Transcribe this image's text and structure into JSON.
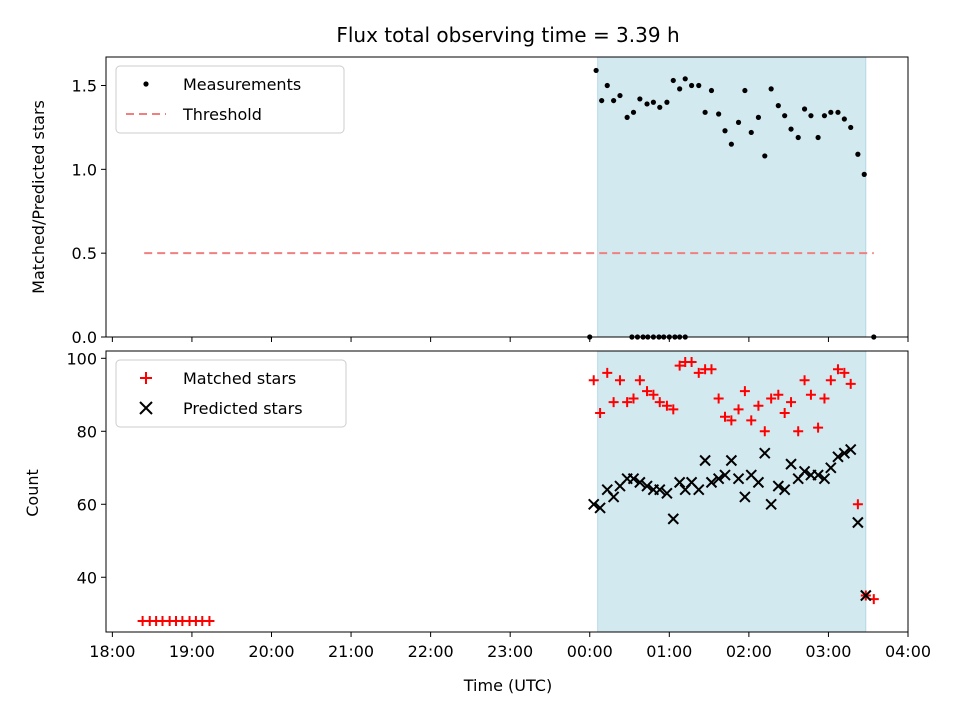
{
  "chart_data": [
    {
      "type": "scatter",
      "panel": "top",
      "title": "Flux total observing time = 3.39 h",
      "ylabel": "Matched/Predicted stars",
      "xlabel": "",
      "x_unit": "hours since 18:00 UTC",
      "xlim": [
        -0.08,
        10.0
      ],
      "ylim": [
        0.0,
        1.67
      ],
      "yticks": [
        0.0,
        0.5,
        1.0,
        1.5
      ],
      "ytick_labels": [
        "0.0",
        "0.5",
        "1.0",
        "1.5"
      ],
      "legend_position": "upper-left",
      "shaded_interval": {
        "x": [
          6.1,
          9.47
        ],
        "color": "#d3e9f0"
      },
      "series": [
        {
          "name": "Measurements",
          "marker": "dot",
          "color": "#000000",
          "points": [
            [
              6.0,
              0.0
            ],
            [
              6.53,
              0.0
            ],
            [
              6.6,
              0.0
            ],
            [
              6.67,
              0.0
            ],
            [
              6.73,
              0.0
            ],
            [
              6.8,
              0.0
            ],
            [
              6.87,
              0.0
            ],
            [
              6.93,
              0.0
            ],
            [
              7.0,
              0.0
            ],
            [
              7.07,
              0.0
            ],
            [
              7.13,
              0.0
            ],
            [
              7.2,
              0.0
            ],
            [
              6.08,
              1.59
            ],
            [
              6.15,
              1.41
            ],
            [
              6.22,
              1.5
            ],
            [
              6.3,
              1.41
            ],
            [
              6.38,
              1.44
            ],
            [
              6.47,
              1.31
            ],
            [
              6.55,
              1.34
            ],
            [
              6.63,
              1.42
            ],
            [
              6.72,
              1.39
            ],
            [
              6.8,
              1.4
            ],
            [
              6.88,
              1.37
            ],
            [
              6.97,
              1.4
            ],
            [
              7.05,
              1.53
            ],
            [
              7.13,
              1.48
            ],
            [
              7.2,
              1.54
            ],
            [
              7.28,
              1.5
            ],
            [
              7.37,
              1.5
            ],
            [
              7.45,
              1.34
            ],
            [
              7.53,
              1.47
            ],
            [
              7.62,
              1.33
            ],
            [
              7.7,
              1.23
            ],
            [
              7.78,
              1.15
            ],
            [
              7.87,
              1.28
            ],
            [
              7.95,
              1.47
            ],
            [
              8.03,
              1.22
            ],
            [
              8.12,
              1.31
            ],
            [
              8.2,
              1.08
            ],
            [
              8.28,
              1.48
            ],
            [
              8.37,
              1.38
            ],
            [
              8.45,
              1.32
            ],
            [
              8.53,
              1.24
            ],
            [
              8.62,
              1.19
            ],
            [
              8.7,
              1.36
            ],
            [
              8.78,
              1.32
            ],
            [
              8.87,
              1.19
            ],
            [
              8.95,
              1.32
            ],
            [
              9.03,
              1.34
            ],
            [
              9.12,
              1.34
            ],
            [
              9.2,
              1.3
            ],
            [
              9.28,
              1.25
            ],
            [
              9.37,
              1.09
            ],
            [
              9.45,
              0.97
            ],
            [
              9.57,
              0.0
            ]
          ]
        },
        {
          "name": "Threshold",
          "style": "dashed-line",
          "color": "#f08080",
          "points": [
            [
              0.4,
              0.5
            ],
            [
              9.57,
              0.5
            ]
          ]
        }
      ]
    },
    {
      "type": "scatter",
      "panel": "bottom",
      "xlabel": "Time (UTC)",
      "ylabel": "Count",
      "x_unit": "hours since 18:00 UTC",
      "xlim": [
        -0.08,
        10.0
      ],
      "ylim": [
        25,
        102
      ],
      "yticks": [
        40,
        60,
        80,
        100
      ],
      "ytick_labels": [
        "40",
        "60",
        "80",
        "100"
      ],
      "xticks": [
        0,
        1,
        2,
        3,
        4,
        5,
        6,
        7,
        8,
        9,
        10
      ],
      "xtick_labels": [
        "18:00",
        "19:00",
        "20:00",
        "21:00",
        "22:00",
        "23:00",
        "00:00",
        "01:00",
        "02:00",
        "03:00",
        "04:00"
      ],
      "legend_position": "upper-left",
      "shaded_interval": {
        "x": [
          6.1,
          9.47
        ],
        "color": "#d3e9f0"
      },
      "series": [
        {
          "name": "Matched stars",
          "marker": "plus",
          "color": "#ff0000",
          "points": [
            [
              0.38,
              28
            ],
            [
              0.47,
              28
            ],
            [
              0.55,
              28
            ],
            [
              0.63,
              28
            ],
            [
              0.72,
              28
            ],
            [
              0.8,
              28
            ],
            [
              0.88,
              28
            ],
            [
              0.97,
              28
            ],
            [
              1.05,
              28
            ],
            [
              1.13,
              28
            ],
            [
              1.22,
              28
            ],
            [
              6.05,
              94
            ],
            [
              6.13,
              85
            ],
            [
              6.22,
              96
            ],
            [
              6.3,
              88
            ],
            [
              6.38,
              94
            ],
            [
              6.47,
              88
            ],
            [
              6.55,
              89
            ],
            [
              6.63,
              94
            ],
            [
              6.72,
              91
            ],
            [
              6.8,
              90
            ],
            [
              6.88,
              88
            ],
            [
              6.97,
              87
            ],
            [
              7.05,
              86
            ],
            [
              7.13,
              98
            ],
            [
              7.2,
              99
            ],
            [
              7.28,
              99
            ],
            [
              7.37,
              96
            ],
            [
              7.45,
              97
            ],
            [
              7.53,
              97
            ],
            [
              7.62,
              89
            ],
            [
              7.7,
              84
            ],
            [
              7.78,
              83
            ],
            [
              7.87,
              86
            ],
            [
              7.95,
              91
            ],
            [
              8.03,
              83
            ],
            [
              8.12,
              87
            ],
            [
              8.2,
              80
            ],
            [
              8.28,
              89
            ],
            [
              8.37,
              90
            ],
            [
              8.45,
              85
            ],
            [
              8.53,
              88
            ],
            [
              8.62,
              80
            ],
            [
              8.7,
              94
            ],
            [
              8.78,
              90
            ],
            [
              8.87,
              81
            ],
            [
              8.95,
              89
            ],
            [
              9.03,
              94
            ],
            [
              9.12,
              97
            ],
            [
              9.2,
              96
            ],
            [
              9.28,
              93
            ],
            [
              9.37,
              60
            ],
            [
              9.47,
              35
            ],
            [
              9.57,
              34
            ]
          ]
        },
        {
          "name": "Predicted stars",
          "marker": "x",
          "color": "#000000",
          "points": [
            [
              6.05,
              60
            ],
            [
              6.13,
              59
            ],
            [
              6.22,
              64
            ],
            [
              6.3,
              62
            ],
            [
              6.38,
              65
            ],
            [
              6.47,
              67
            ],
            [
              6.55,
              67
            ],
            [
              6.63,
              66
            ],
            [
              6.72,
              65
            ],
            [
              6.8,
              64
            ],
            [
              6.88,
              64
            ],
            [
              6.97,
              63
            ],
            [
              7.05,
              56
            ],
            [
              7.13,
              66
            ],
            [
              7.2,
              64
            ],
            [
              7.28,
              66
            ],
            [
              7.37,
              64
            ],
            [
              7.45,
              72
            ],
            [
              7.53,
              66
            ],
            [
              7.62,
              67
            ],
            [
              7.7,
              68
            ],
            [
              7.78,
              72
            ],
            [
              7.87,
              67
            ],
            [
              7.95,
              62
            ],
            [
              8.03,
              68
            ],
            [
              8.12,
              66
            ],
            [
              8.2,
              74
            ],
            [
              8.28,
              60
            ],
            [
              8.37,
              65
            ],
            [
              8.45,
              64
            ],
            [
              8.53,
              71
            ],
            [
              8.62,
              67
            ],
            [
              8.7,
              69
            ],
            [
              8.78,
              68
            ],
            [
              8.87,
              68
            ],
            [
              8.95,
              67
            ],
            [
              9.03,
              70
            ],
            [
              9.12,
              73
            ],
            [
              9.2,
              74
            ],
            [
              9.28,
              75
            ],
            [
              9.37,
              55
            ],
            [
              9.47,
              35
            ]
          ]
        }
      ]
    }
  ]
}
